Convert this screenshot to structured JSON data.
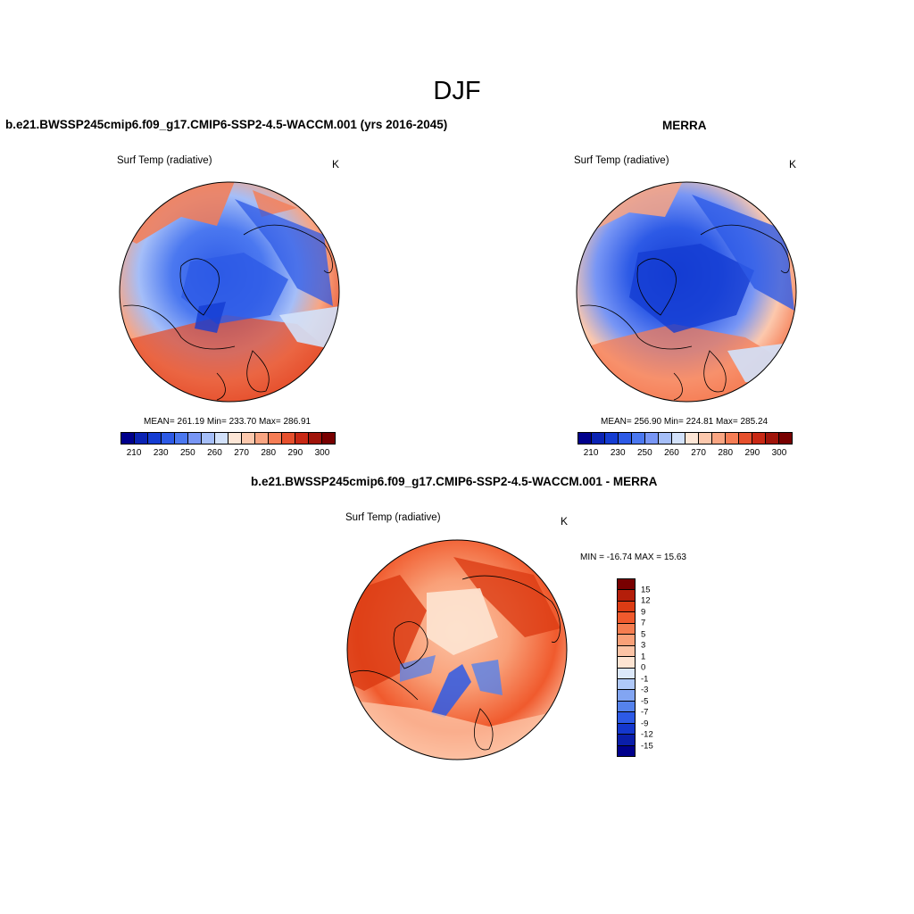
{
  "figure": {
    "title": "DJF"
  },
  "panels": [
    {
      "id": "model",
      "title": "b.e21.BWSSP245cmip6.f09_g17.CMIP6-SSP2-4.5-WACCM.001 (yrs 2016-2045)",
      "variable": "Surf Temp (radiative)",
      "units": "K",
      "stats_text": "MEAN= 261.19  Min= 233.70  Max= 286.91",
      "mean": 261.19,
      "min": 233.7,
      "max": 286.91
    },
    {
      "id": "obs",
      "title": "MERRA",
      "variable": "Surf Temp (radiative)",
      "units": "K",
      "stats_text": "MEAN= 256.90  Min= 224.81  Max= 285.24",
      "mean": 256.9,
      "min": 224.81,
      "max": 285.24
    },
    {
      "id": "diff",
      "title": "b.e21.BWSSP245cmip6.f09_g17.CMIP6-SSP2-4.5-WACCM.001 - MERRA",
      "variable": "Surf Temp (radiative)",
      "units": "K",
      "stats_text": "MIN = -16.74 MAX =  15.63",
      "min": -16.74,
      "max": 15.63
    }
  ],
  "colorbar_abs": {
    "tick_labels": [
      "210",
      "230",
      "250",
      "260",
      "270",
      "280",
      "290",
      "300"
    ],
    "colors": [
      "#00008c",
      "#0a23b4",
      "#143cd2",
      "#2d5ae6",
      "#4b78f0",
      "#7896f5",
      "#a5bef8",
      "#d2e1fa",
      "#fde6d6",
      "#fcc8ad",
      "#f9a582",
      "#f57d55",
      "#e6502d",
      "#c82814",
      "#a0140a",
      "#780000"
    ]
  },
  "colorbar_diff": {
    "tick_labels": [
      "15",
      "12",
      "9",
      "7",
      "5",
      "3",
      "1",
      "0",
      "-1",
      "-3",
      "-5",
      "-7",
      "-9",
      "-12",
      "-15"
    ],
    "colors": [
      "#780000",
      "#b41e0a",
      "#dc3c14",
      "#f05a2d",
      "#f57d50",
      "#f9a078",
      "#fcc3a5",
      "#fde4d2",
      "#dce8fa",
      "#afc8f8",
      "#82a5f2",
      "#5582ec",
      "#2d5ae6",
      "#1437cd",
      "#0a1eaa",
      "#00008c"
    ]
  },
  "legend_colors": {
    "land_outline": "#000000"
  }
}
